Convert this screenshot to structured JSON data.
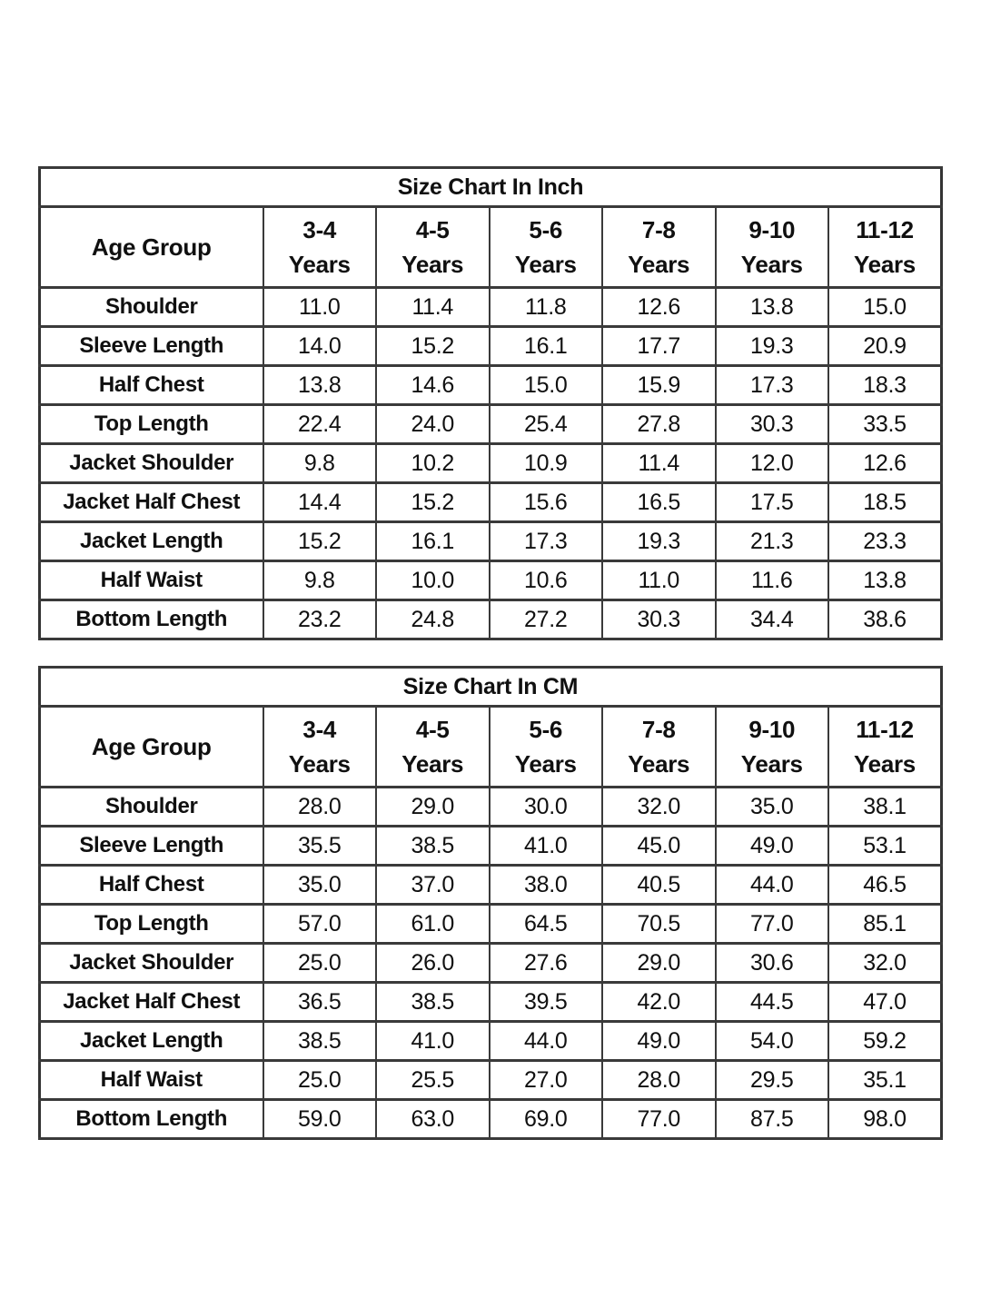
{
  "page": {
    "background": "#ffffff",
    "text_color": "#101010",
    "border_color": "#3a3a3a"
  },
  "chart_data": [
    {
      "type": "table",
      "title": "Size Chart In Inch",
      "unit": "inch",
      "row_header": "Age Group",
      "columns": [
        {
          "line1": "3-4",
          "line2": "Years"
        },
        {
          "line1": "4-5",
          "line2": "Years"
        },
        {
          "line1": "5-6",
          "line2": "Years"
        },
        {
          "line1": "7-8",
          "line2": "Years"
        },
        {
          "line1": "9-10",
          "line2": "Years"
        },
        {
          "line1": "11-12",
          "line2": "Years"
        }
      ],
      "rows": [
        {
          "label": "Shoulder",
          "values": [
            "11.0",
            "11.4",
            "11.8",
            "12.6",
            "13.8",
            "15.0"
          ]
        },
        {
          "label": "Sleeve Length",
          "values": [
            "14.0",
            "15.2",
            "16.1",
            "17.7",
            "19.3",
            "20.9"
          ]
        },
        {
          "label": "Half Chest",
          "values": [
            "13.8",
            "14.6",
            "15.0",
            "15.9",
            "17.3",
            "18.3"
          ]
        },
        {
          "label": "Top Length",
          "values": [
            "22.4",
            "24.0",
            "25.4",
            "27.8",
            "30.3",
            "33.5"
          ]
        },
        {
          "label": "Jacket Shoulder",
          "values": [
            "9.8",
            "10.2",
            "10.9",
            "11.4",
            "12.0",
            "12.6"
          ]
        },
        {
          "label": "Jacket Half Chest",
          "values": [
            "14.4",
            "15.2",
            "15.6",
            "16.5",
            "17.5",
            "18.5"
          ]
        },
        {
          "label": "Jacket Length",
          "values": [
            "15.2",
            "16.1",
            "17.3",
            "19.3",
            "21.3",
            "23.3"
          ]
        },
        {
          "label": "Half Waist",
          "values": [
            "9.8",
            "10.0",
            "10.6",
            "11.0",
            "11.6",
            "13.8"
          ]
        },
        {
          "label": "Bottom Length",
          "values": [
            "23.2",
            "24.8",
            "27.2",
            "30.3",
            "34.4",
            "38.6"
          ]
        }
      ]
    },
    {
      "type": "table",
      "title": "Size Chart In CM",
      "unit": "cm",
      "row_header": "Age Group",
      "columns": [
        {
          "line1": "3-4",
          "line2": "Years"
        },
        {
          "line1": "4-5",
          "line2": "Years"
        },
        {
          "line1": "5-6",
          "line2": "Years"
        },
        {
          "line1": "7-8",
          "line2": "Years"
        },
        {
          "line1": "9-10",
          "line2": "Years"
        },
        {
          "line1": "11-12",
          "line2": "Years"
        }
      ],
      "rows": [
        {
          "label": "Shoulder",
          "values": [
            "28.0",
            "29.0",
            "30.0",
            "32.0",
            "35.0",
            "38.1"
          ]
        },
        {
          "label": "Sleeve Length",
          "values": [
            "35.5",
            "38.5",
            "41.0",
            "45.0",
            "49.0",
            "53.1"
          ]
        },
        {
          "label": "Half Chest",
          "values": [
            "35.0",
            "37.0",
            "38.0",
            "40.5",
            "44.0",
            "46.5"
          ]
        },
        {
          "label": "Top Length",
          "values": [
            "57.0",
            "61.0",
            "64.5",
            "70.5",
            "77.0",
            "85.1"
          ]
        },
        {
          "label": "Jacket Shoulder",
          "values": [
            "25.0",
            "26.0",
            "27.6",
            "29.0",
            "30.6",
            "32.0"
          ]
        },
        {
          "label": "Jacket Half Chest",
          "values": [
            "36.5",
            "38.5",
            "39.5",
            "42.0",
            "44.5",
            "47.0"
          ]
        },
        {
          "label": "Jacket Length",
          "values": [
            "38.5",
            "41.0",
            "44.0",
            "49.0",
            "54.0",
            "59.2"
          ]
        },
        {
          "label": "Half Waist",
          "values": [
            "25.0",
            "25.5",
            "27.0",
            "28.0",
            "29.5",
            "35.1"
          ]
        },
        {
          "label": "Bottom Length",
          "values": [
            "59.0",
            "63.0",
            "69.0",
            "77.0",
            "87.5",
            "98.0"
          ]
        }
      ]
    }
  ]
}
